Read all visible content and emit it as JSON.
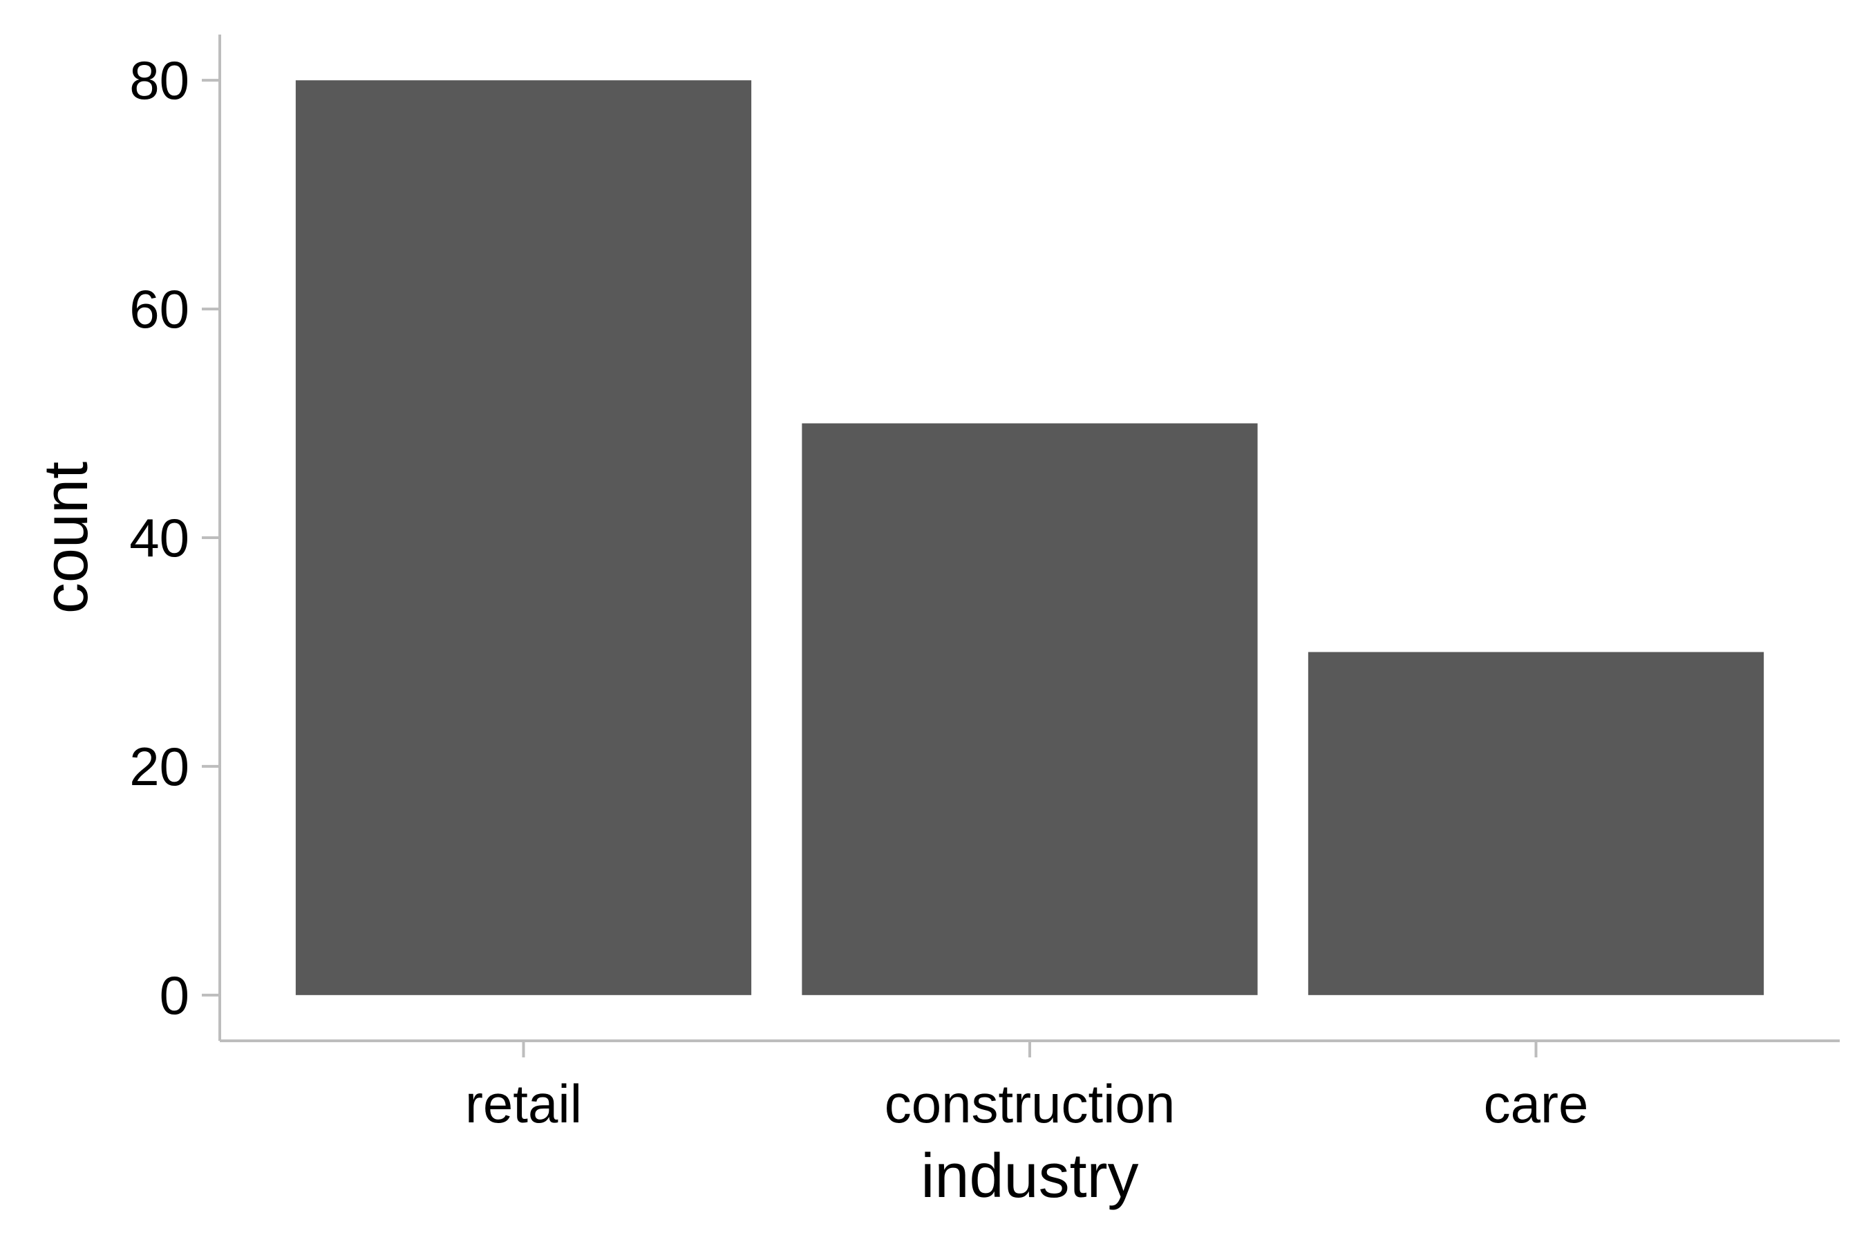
{
  "chart_data": {
    "type": "bar",
    "title": "",
    "xlabel": "industry",
    "ylabel": "count",
    "categories": [
      "retail",
      "construction",
      "care"
    ],
    "values": [
      80,
      50,
      30
    ],
    "ylim": [
      -4,
      84
    ],
    "yticks": [
      0,
      20,
      40,
      60,
      80
    ],
    "grid": false,
    "legend": "none",
    "colors": {
      "bar": "#595959",
      "axis": "#bdbdbd",
      "text": "#000000",
      "background": "#ffffff"
    }
  }
}
